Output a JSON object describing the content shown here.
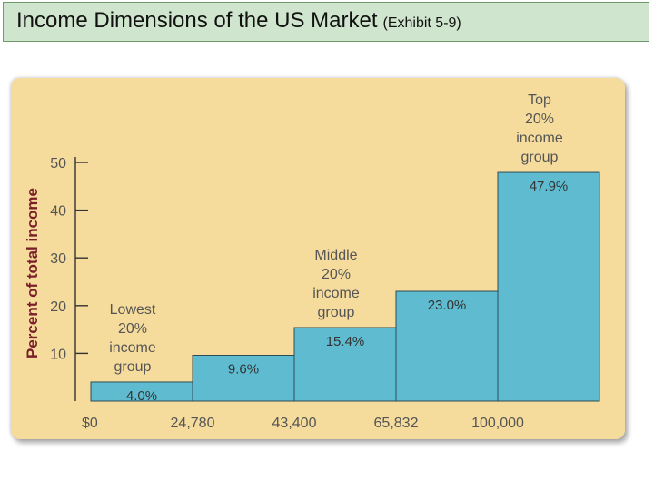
{
  "header": {
    "title": "Income Dimensions of the US Market",
    "subtitle": "(Exhibit 5-9)"
  },
  "chart_data": {
    "type": "bar",
    "title": "",
    "xlabel": "",
    "ylabel": "Percent of total income",
    "ylim": [
      0,
      50
    ],
    "y_ticks": [
      10,
      20,
      30,
      40,
      50
    ],
    "x_boundaries": [
      "$0",
      "24,780",
      "43,400",
      "65,832",
      "100,000"
    ],
    "values": [
      4.0,
      9.6,
      15.4,
      23.0,
      47.9
    ],
    "value_labels": [
      "4.0%",
      "9.6%",
      "15.4%",
      "23.0%",
      "47.9%"
    ],
    "annotations": [
      {
        "bar_index": 0,
        "lines": [
          "Lowest",
          "20%",
          "income",
          "group"
        ]
      },
      {
        "bar_index": 2,
        "lines": [
          "Middle",
          "20%",
          "income",
          "group"
        ]
      },
      {
        "bar_index": 4,
        "lines": [
          "Top",
          "20%",
          "income",
          "group"
        ]
      }
    ]
  },
  "colors": {
    "banner_bg": "#cfe5cd",
    "panel_bg": "#f6dc9c",
    "bar_fill": "#5fbcd0",
    "ylabel_color": "#7a1f2a"
  }
}
